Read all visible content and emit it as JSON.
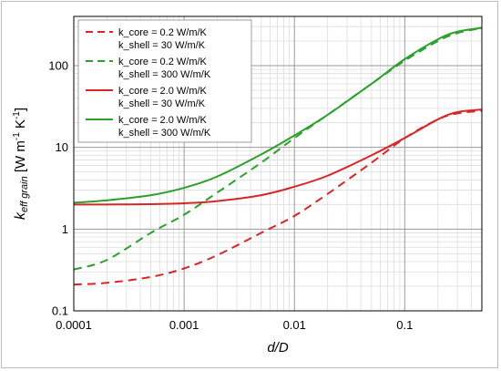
{
  "chart_data": {
    "type": "line",
    "xscale": "log",
    "yscale": "log",
    "xlim": [
      0.0001,
      0.5
    ],
    "ylim": [
      0.1,
      400
    ],
    "xticks": [
      "0.0001",
      "0.001",
      "0.01",
      "0.1"
    ],
    "yticks": [
      "0.1",
      "1",
      "10",
      "100"
    ],
    "xlabel": "d/D",
    "ylabel": {
      "k": "k",
      "sub": "eff grain",
      "unit_open": " [W m",
      "exp1": "-1",
      "unit_mid": " K",
      "exp2": "-1",
      "unit_close": "]"
    },
    "grid": true,
    "legend": "top-left",
    "series": [
      {
        "label_lines": [
          "k_core = 0.2 W/m/K",
          "k_shell = 30 W/m/K"
        ],
        "color": "#d62728",
        "dash": true,
        "x": [
          0.0001,
          0.0002,
          0.0005,
          0.001,
          0.002,
          0.005,
          0.01,
          0.02,
          0.05,
          0.1,
          0.2,
          0.3,
          0.5
        ],
        "y": [
          0.21,
          0.22,
          0.26,
          0.33,
          0.48,
          0.9,
          1.45,
          2.7,
          6.5,
          13,
          22,
          26,
          28
        ]
      },
      {
        "label_lines": [
          "k_core = 0.2 W/m/K",
          "k_shell = 300 W/m/K"
        ],
        "color": "#2ca02c",
        "dash": true,
        "x": [
          0.0001,
          0.0002,
          0.0005,
          0.001,
          0.002,
          0.005,
          0.01,
          0.02,
          0.05,
          0.1,
          0.2,
          0.3,
          0.5
        ],
        "y": [
          0.32,
          0.42,
          0.9,
          1.5,
          2.8,
          6.5,
          13,
          25,
          60,
          115,
          200,
          250,
          290
        ]
      },
      {
        "label_lines": [
          "k_core = 2.0 W/m/K",
          "k_shell = 30 W/m/K"
        ],
        "color": "#d62728",
        "dash": false,
        "x": [
          0.0001,
          0.0002,
          0.0005,
          0.001,
          0.002,
          0.005,
          0.01,
          0.02,
          0.05,
          0.1,
          0.2,
          0.3,
          0.5
        ],
        "y": [
          2.0,
          2.0,
          2.02,
          2.07,
          2.2,
          2.6,
          3.3,
          4.5,
          8.0,
          13,
          22,
          27,
          29
        ]
      },
      {
        "label_lines": [
          "k_core = 2.0 W/m/K",
          "k_shell = 300 W/m/K"
        ],
        "color": "#2ca02c",
        "dash": false,
        "x": [
          0.0001,
          0.0002,
          0.0005,
          0.001,
          0.002,
          0.005,
          0.01,
          0.02,
          0.05,
          0.1,
          0.2,
          0.3,
          0.5
        ],
        "y": [
          2.1,
          2.25,
          2.6,
          3.2,
          4.4,
          8.2,
          14,
          25,
          60,
          120,
          210,
          260,
          290
        ]
      }
    ]
  }
}
